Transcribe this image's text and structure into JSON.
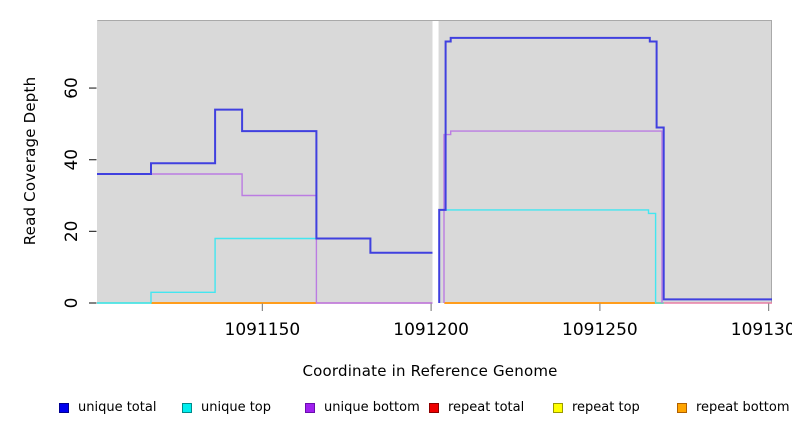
{
  "figure": {
    "background": "#ffffff",
    "panel_background": "#d9d9d9",
    "panel_border_color": "#a9a9a9",
    "x_tick_color": "#888888",
    "y_tick_color": "#333333",
    "text_color": "#000000"
  },
  "chart_data": {
    "type": "line",
    "subtype": "step-coverage-plot",
    "title": "",
    "xlabel": "Coordinate in Reference Genome",
    "ylabel": "Read Coverage Depth",
    "xlim": [
      1091101,
      1091301
    ],
    "ylim": [
      0,
      79
    ],
    "grid": false,
    "legend_position": "bottom",
    "panel_gap_x": {
      "from": 1091200.4,
      "to": 1091202.2
    },
    "x_ticks": [
      {
        "value": 1091150,
        "label": "1091150"
      },
      {
        "value": 1091200,
        "label": "1091200"
      },
      {
        "value": 1091250,
        "label": "1091250"
      },
      {
        "value": 1091300,
        "label": "1091300"
      }
    ],
    "y_ticks": [
      {
        "value": 0,
        "label": "0"
      },
      {
        "value": 20,
        "label": "20"
      },
      {
        "value": 40,
        "label": "40"
      },
      {
        "value": 60,
        "label": "60"
      }
    ],
    "series": [
      {
        "name": "repeat bottom",
        "color": "#ff9d1c",
        "line_width": 2,
        "segments": [
          [
            [
              1091117,
              0
            ],
            [
              1091166,
              0
            ]
          ],
          [
            [
              1091203.9,
              0
            ],
            [
              1091268.9,
              0
            ]
          ]
        ]
      },
      {
        "name": "unique top",
        "color": "#43e6f0",
        "line_width": 1.4,
        "segments": [
          [
            [
              1091101,
              0
            ],
            [
              1091117,
              0
            ],
            [
              1091117,
              3
            ],
            [
              1091136,
              3
            ],
            [
              1091136,
              18
            ],
            [
              1091182,
              18
            ],
            [
              1091182,
              14
            ],
            [
              1091200.4,
              14
            ]
          ],
          [
            [
              1091202.4,
              0
            ],
            [
              1091202.4,
              26
            ],
            [
              1091264.4,
              26
            ],
            [
              1091264.4,
              25
            ],
            [
              1091266.5,
              25
            ],
            [
              1091266.5,
              0
            ],
            [
              1091268.9,
              0
            ]
          ]
        ]
      },
      {
        "name": "unique bottom",
        "color": "#bb7ce2",
        "line_width": 1.4,
        "segments": [
          [
            [
              1091101,
              36
            ],
            [
              1091144,
              36
            ],
            [
              1091144,
              30
            ],
            [
              1091166,
              30
            ],
            [
              1091166,
              0
            ],
            [
              1091200.4,
              0
            ]
          ],
          [
            [
              1091203.8,
              0
            ],
            [
              1091203.8,
              47
            ],
            [
              1091205.8,
              47
            ],
            [
              1091205.8,
              48
            ],
            [
              1091268.4,
              48
            ],
            [
              1091268.4,
              0
            ]
          ]
        ]
      },
      {
        "name": "unique total",
        "color": "#4040df",
        "line_width": 2,
        "segments": [
          [
            [
              1091101,
              36
            ],
            [
              1091117,
              36
            ],
            [
              1091117,
              39
            ],
            [
              1091136,
              39
            ],
            [
              1091136,
              54
            ],
            [
              1091144,
              54
            ],
            [
              1091144,
              48
            ],
            [
              1091166,
              48
            ],
            [
              1091166,
              18
            ],
            [
              1091182,
              18
            ],
            [
              1091182,
              14
            ],
            [
              1091200.4,
              14
            ]
          ],
          [
            [
              1091202.4,
              0
            ],
            [
              1091202.4,
              26
            ],
            [
              1091204.3,
              26
            ],
            [
              1091204.3,
              73
            ],
            [
              1091205.8,
              73
            ],
            [
              1091205.8,
              74
            ],
            [
              1091264.8,
              74
            ],
            [
              1091264.8,
              73
            ],
            [
              1091266.8,
              73
            ],
            [
              1091266.8,
              49
            ],
            [
              1091268.9,
              49
            ],
            [
              1091268.9,
              1
            ],
            [
              1091301,
              1
            ]
          ]
        ]
      }
    ],
    "zero_line_overlap_segments": [
      {
        "color": "#74d79c",
        "from": 1091101,
        "to": 1091117,
        "value": 0
      },
      {
        "color": "#e87fa6",
        "from": 1091166,
        "to": 1091200.4,
        "value": 0
      },
      {
        "color": "#e87fa6",
        "from": 1091268.9,
        "to": 1091301,
        "value": 0
      }
    ]
  },
  "legend": {
    "items": [
      {
        "label": "unique total",
        "fill": "#0000ee",
        "border": "#000090"
      },
      {
        "label": "unique top",
        "fill": "#00eeee",
        "border": "#008b8b"
      },
      {
        "label": "unique bottom",
        "fill": "#a020f0",
        "border": "#6a0dad"
      },
      {
        "label": "repeat total",
        "fill": "#ee0000",
        "border": "#8b0000"
      },
      {
        "label": "repeat top",
        "fill": "#ffff00",
        "border": "#9a9a00"
      },
      {
        "label": "repeat bottom",
        "fill": "#ffa500",
        "border": "#b06000"
      }
    ]
  }
}
